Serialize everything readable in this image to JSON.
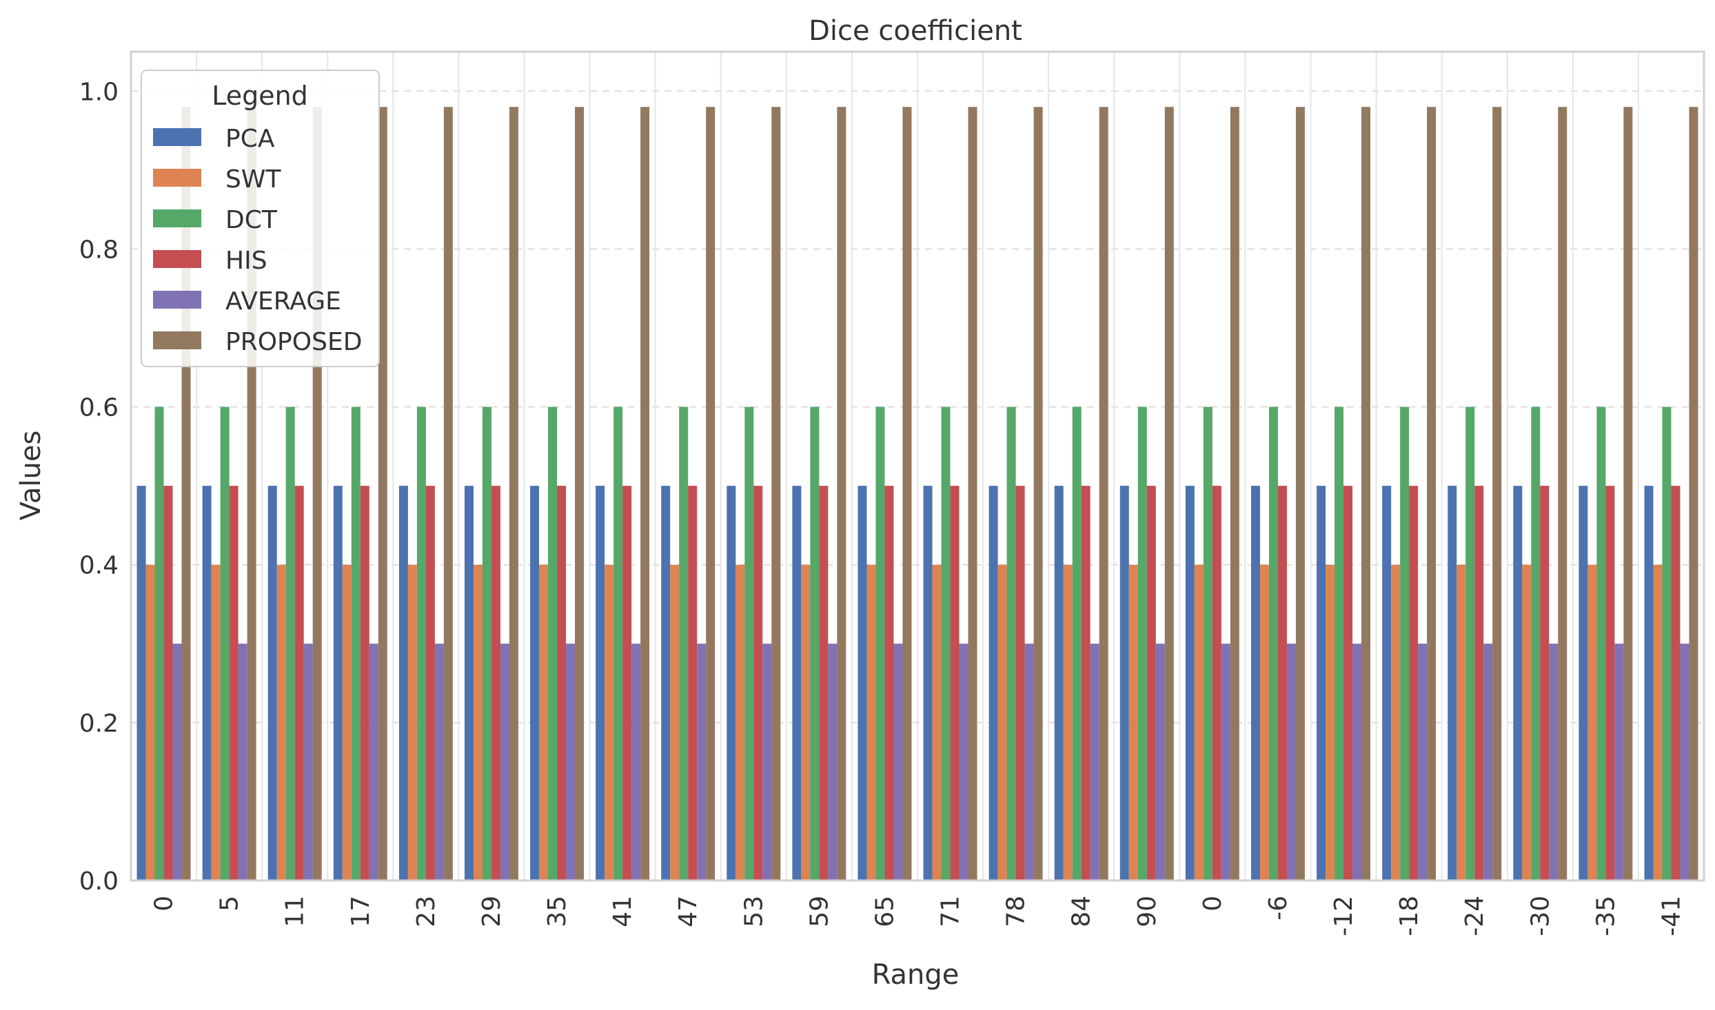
{
  "chart_data": {
    "type": "bar",
    "title": "Dice coefficient",
    "xlabel": "Range",
    "ylabel": "Values",
    "ylim": [
      0,
      1.0
    ],
    "yticks": [
      "0.0",
      "0.2",
      "0.4",
      "0.6",
      "0.8",
      "1.0"
    ],
    "grid": true,
    "legend": {
      "title": "Legend",
      "placement": "top-left"
    },
    "categories": [
      "0",
      "5",
      "11",
      "17",
      "23",
      "29",
      "35",
      "41",
      "47",
      "53",
      "59",
      "65",
      "71",
      "78",
      "84",
      "90",
      "0",
      "-6",
      "-12",
      "-18",
      "-24",
      "-30",
      "-35",
      "-41"
    ],
    "series": [
      {
        "name": "PCA",
        "color": "#4C72B0",
        "values": [
          0.5,
          0.5,
          0.5,
          0.5,
          0.5,
          0.5,
          0.5,
          0.5,
          0.5,
          0.5,
          0.5,
          0.5,
          0.5,
          0.5,
          0.5,
          0.5,
          0.5,
          0.5,
          0.5,
          0.5,
          0.5,
          0.5,
          0.5,
          0.5
        ]
      },
      {
        "name": "SWT",
        "color": "#DD8452",
        "values": [
          0.4,
          0.4,
          0.4,
          0.4,
          0.4,
          0.4,
          0.4,
          0.4,
          0.4,
          0.4,
          0.4,
          0.4,
          0.4,
          0.4,
          0.4,
          0.4,
          0.4,
          0.4,
          0.4,
          0.4,
          0.4,
          0.4,
          0.4,
          0.4
        ]
      },
      {
        "name": "DCT",
        "color": "#55A868",
        "values": [
          0.6,
          0.6,
          0.6,
          0.6,
          0.6,
          0.6,
          0.6,
          0.6,
          0.6,
          0.6,
          0.6,
          0.6,
          0.6,
          0.6,
          0.6,
          0.6,
          0.6,
          0.6,
          0.6,
          0.6,
          0.6,
          0.6,
          0.6,
          0.6
        ]
      },
      {
        "name": "HIS",
        "color": "#C44E52",
        "values": [
          0.5,
          0.5,
          0.5,
          0.5,
          0.5,
          0.5,
          0.5,
          0.5,
          0.5,
          0.5,
          0.5,
          0.5,
          0.5,
          0.5,
          0.5,
          0.5,
          0.5,
          0.5,
          0.5,
          0.5,
          0.5,
          0.5,
          0.5,
          0.5
        ]
      },
      {
        "name": "AVERAGE",
        "color": "#8172B3",
        "values": [
          0.3,
          0.3,
          0.3,
          0.3,
          0.3,
          0.3,
          0.3,
          0.3,
          0.3,
          0.3,
          0.3,
          0.3,
          0.3,
          0.3,
          0.3,
          0.3,
          0.3,
          0.3,
          0.3,
          0.3,
          0.3,
          0.3,
          0.3,
          0.3
        ]
      },
      {
        "name": "PROPOSED",
        "color": "#937860",
        "values": [
          0.98,
          0.98,
          0.98,
          0.98,
          0.98,
          0.98,
          0.98,
          0.98,
          0.98,
          0.98,
          0.98,
          0.98,
          0.98,
          0.98,
          0.98,
          0.98,
          0.98,
          0.98,
          0.98,
          0.98,
          0.98,
          0.98,
          0.98,
          0.98
        ]
      }
    ]
  }
}
